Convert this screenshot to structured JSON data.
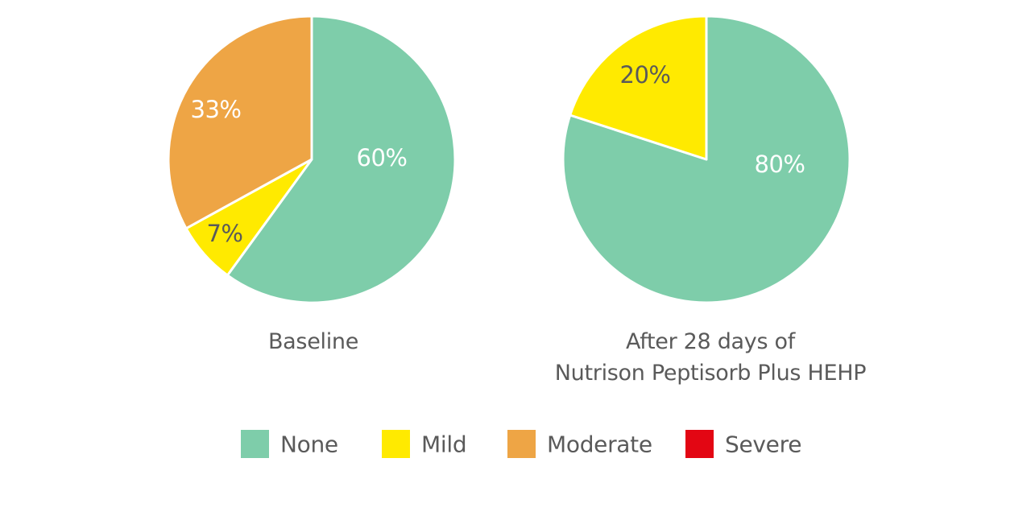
{
  "chart_data": [
    {
      "type": "pie",
      "title": "Baseline",
      "categories": [
        "None",
        "Mild",
        "Moderate"
      ],
      "values": [
        60,
        7,
        33
      ],
      "labels": [
        "60%",
        "7%",
        "33%"
      ],
      "colors": [
        "#7ecdaa",
        "#ffea00",
        "#eea545"
      ]
    },
    {
      "type": "pie",
      "title": "After 28 days of Nutrison Peptisorb Plus HEHP",
      "title_lines": [
        "After 28 days of",
        "Nutrison Peptisorb Plus HEHP"
      ],
      "categories": [
        "None",
        "Mild"
      ],
      "values": [
        80,
        20
      ],
      "labels": [
        "80%",
        "20%"
      ],
      "colors": [
        "#7ecdaa",
        "#ffea00"
      ]
    }
  ],
  "legend": {
    "placement": "bottom",
    "items": [
      {
        "label": "None",
        "color": "#7ecdaa"
      },
      {
        "label": "Mild",
        "color": "#ffea00"
      },
      {
        "label": "Moderate",
        "color": "#eea545"
      },
      {
        "label": "Severe",
        "color": "#e30613"
      }
    ]
  },
  "label_colors": {
    "on_green": "#ffffff",
    "on_orange": "#ffffff",
    "on_yellow": "#5a5a5a"
  }
}
